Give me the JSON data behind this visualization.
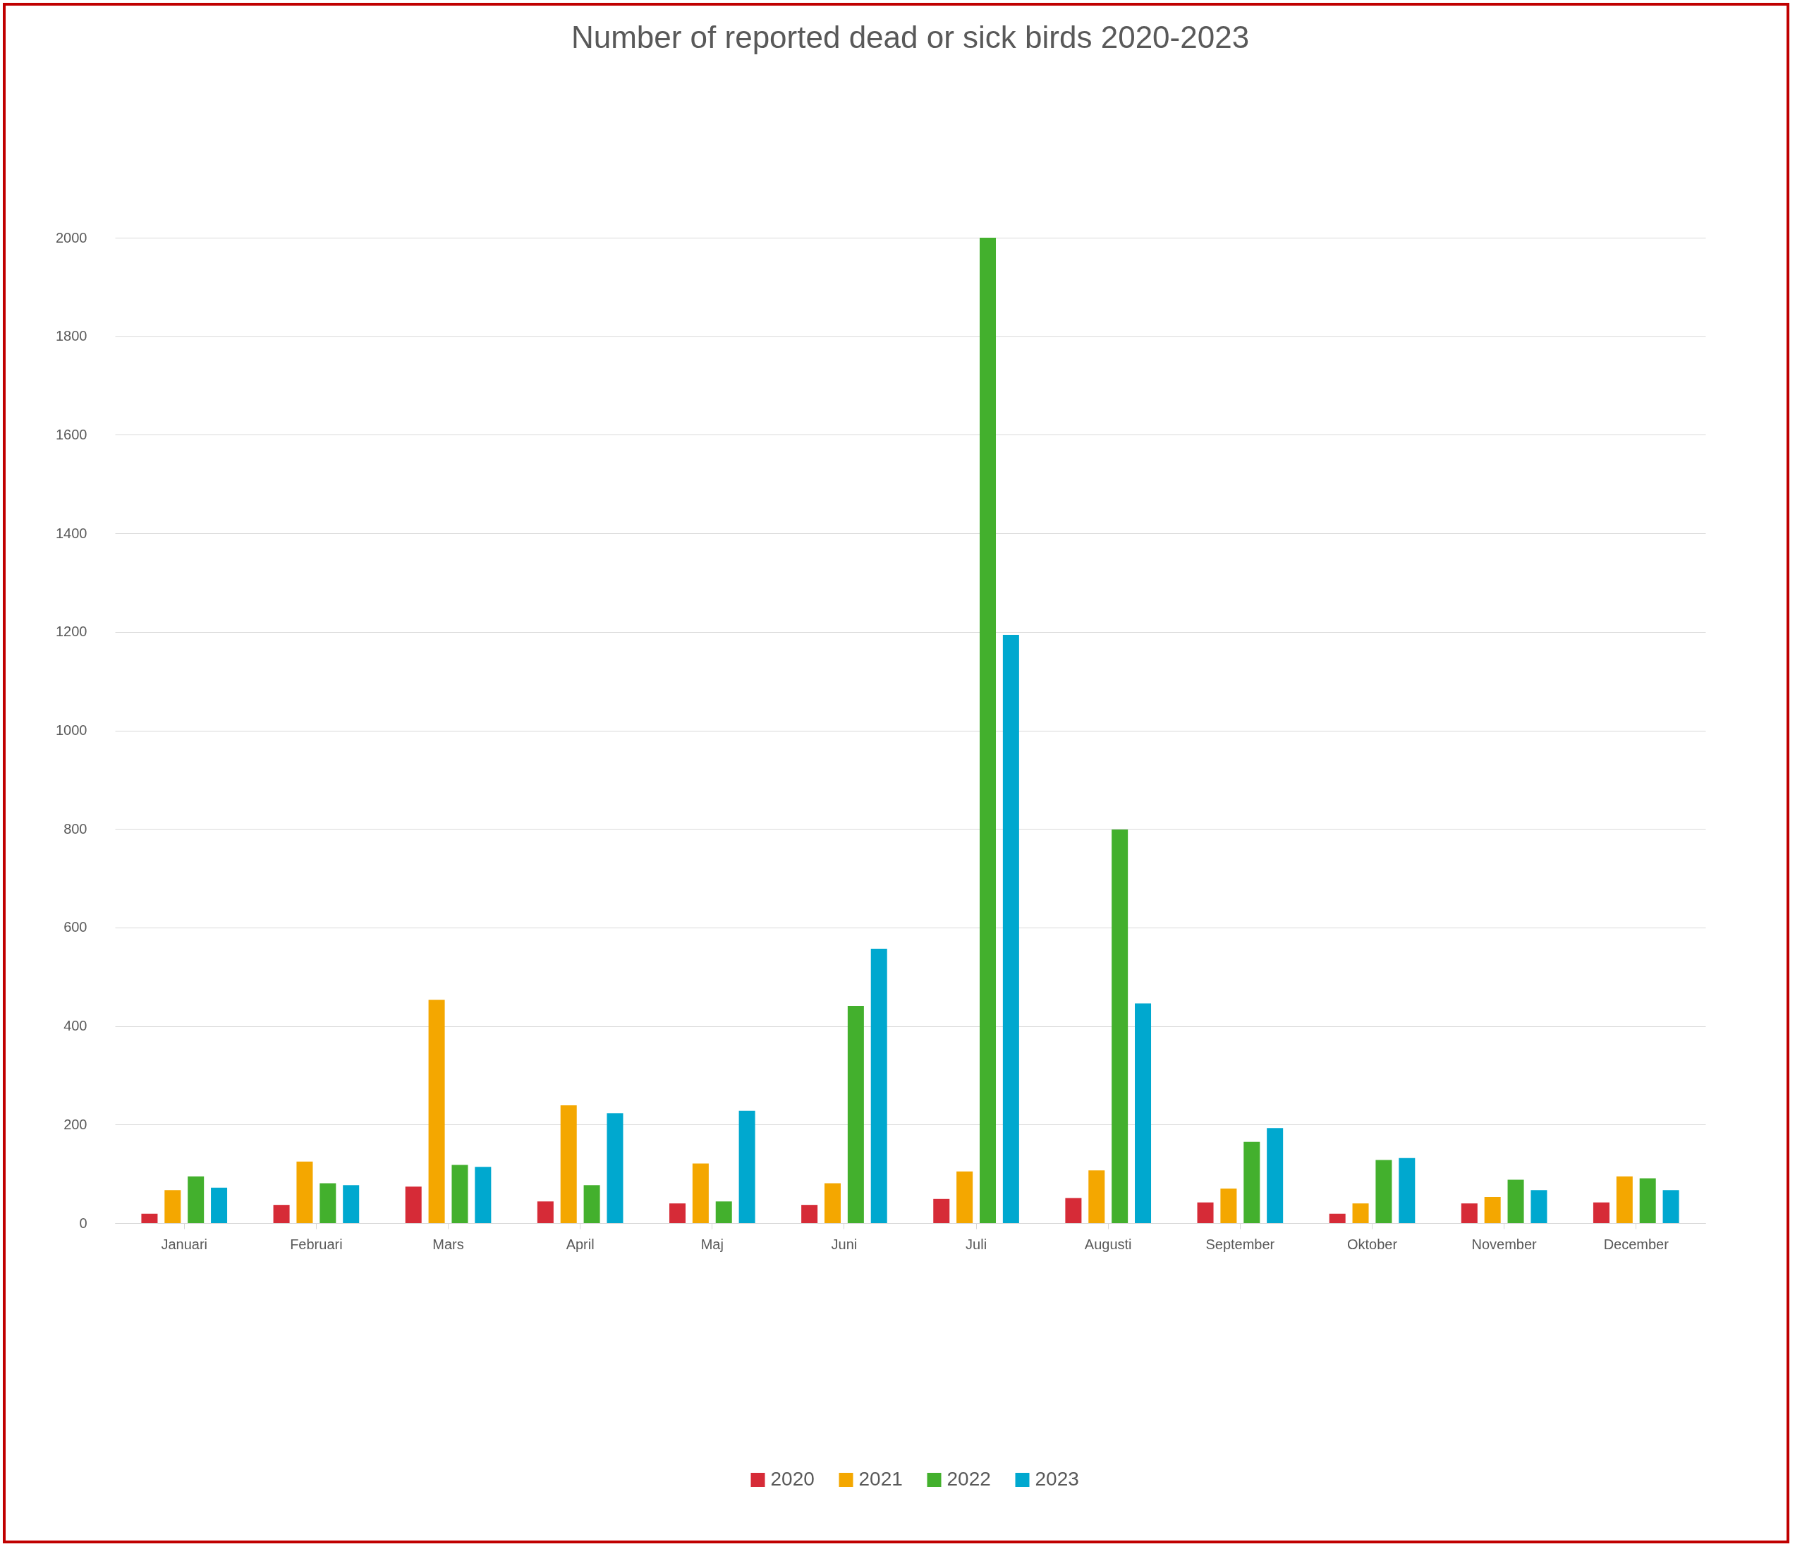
{
  "chart_data": {
    "type": "bar",
    "title": "Number of reported dead or sick birds 2020-2023",
    "categories": [
      "Januari",
      "Februari",
      "Mars",
      "April",
      "Maj",
      "Juni",
      "Juli",
      "Augusti",
      "September",
      "Oktober",
      "November",
      "December"
    ],
    "series": [
      {
        "name": "2020",
        "color": "#d62b37",
        "values": [
          19,
          37,
          74,
          44,
          40,
          37,
          49,
          51,
          42,
          19,
          40,
          42
        ]
      },
      {
        "name": "2021",
        "color": "#f4a700",
        "values": [
          67,
          125,
          453,
          239,
          121,
          81,
          105,
          107,
          70,
          40,
          53,
          95
        ]
      },
      {
        "name": "2022",
        "color": "#43b02d",
        "values": [
          95,
          81,
          118,
          77,
          44,
          441,
          2000,
          799,
          165,
          128,
          88,
          91
        ]
      },
      {
        "name": "2023",
        "color": "#00a8cf",
        "values": [
          72,
          77,
          114,
          223,
          228,
          557,
          1194,
          446,
          193,
          132,
          67,
          67
        ]
      }
    ],
    "ylim": [
      0,
      2000
    ],
    "yticks": [
      0,
      200,
      400,
      600,
      800,
      1000,
      1200,
      1400,
      1600,
      1800,
      2000
    ],
    "grid": "y",
    "legend": "bottom"
  }
}
